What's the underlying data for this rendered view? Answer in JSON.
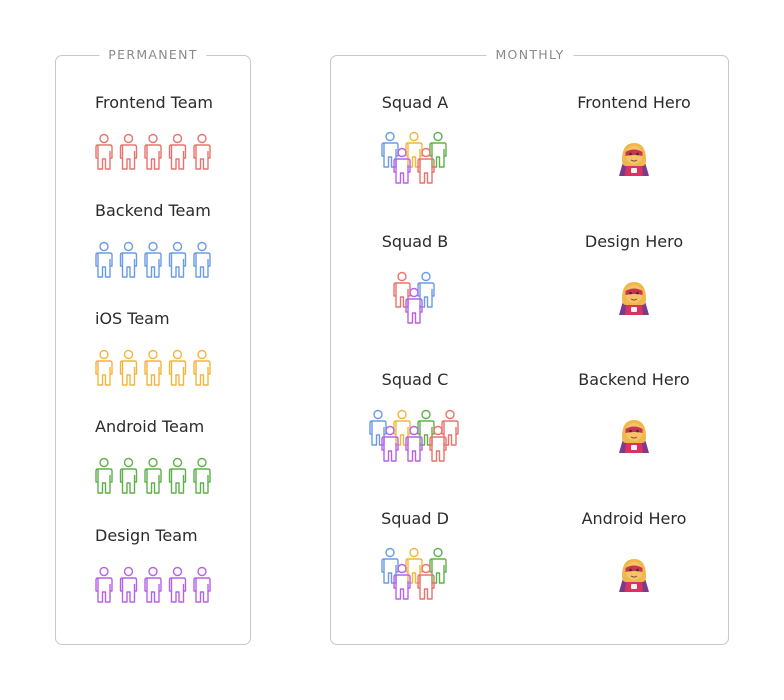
{
  "permanent": {
    "legend": "PERMANENT",
    "teams": [
      {
        "name": "Frontend Team",
        "color": "#e8736c",
        "icon": "person-outline-icon",
        "count": 5
      },
      {
        "name": "Backend Team",
        "color": "#6b9be6",
        "icon": "person-outline-icon",
        "count": 5
      },
      {
        "name": "iOS Team",
        "color": "#f3b63d",
        "icon": "person-outline-icon",
        "count": 5
      },
      {
        "name": "Android Team",
        "color": "#5fb04a",
        "icon": "person-outline-icon",
        "count": 5
      },
      {
        "name": "Design Team",
        "color": "#b662e6",
        "icon": "person-outline-icon",
        "count": 5
      }
    ]
  },
  "monthly": {
    "legend": "MONTHLY",
    "squads": [
      {
        "name": "Squad A",
        "members": [
          "#6b9be6",
          "#f3b63d",
          "#5fb04a",
          "#b662e6",
          "#e8736c"
        ]
      },
      {
        "name": "Squad B",
        "members": [
          "#e8736c",
          "#6b9be6",
          "#b662e6"
        ]
      },
      {
        "name": "Squad C",
        "members": [
          "#6b9be6",
          "#f3b63d",
          "#5fb04a",
          "#e8736c",
          "#b662e6",
          "#b662e6",
          "#e8736c"
        ]
      },
      {
        "name": "Squad D",
        "members": [
          "#6b9be6",
          "#f3b63d",
          "#5fb04a",
          "#b662e6",
          "#e8736c"
        ]
      }
    ],
    "heroes": [
      {
        "name": "Frontend Hero",
        "icon": "superhero-icon"
      },
      {
        "name": "Design Hero",
        "icon": "superhero-icon"
      },
      {
        "name": "Backend Hero",
        "icon": "superhero-icon"
      },
      {
        "name": "Android Hero",
        "icon": "superhero-icon"
      }
    ]
  }
}
